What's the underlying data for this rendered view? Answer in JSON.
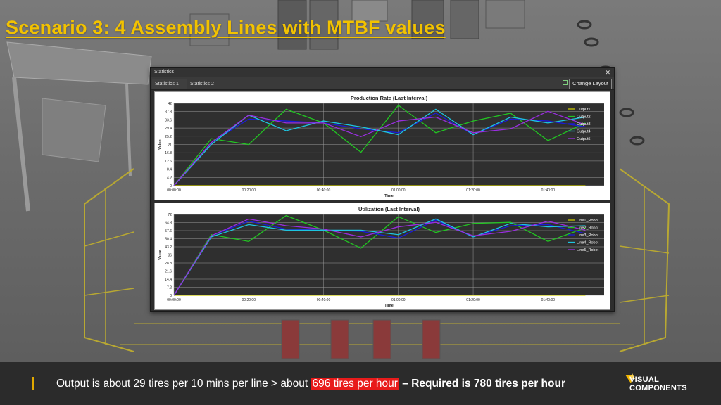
{
  "slide": {
    "title": "Scenario 3: 4 Assembly Lines with MTBF values"
  },
  "window": {
    "title": "Statistics",
    "close_icon": "close-icon",
    "tabs": [
      {
        "label": "Statistics 1",
        "active": true
      },
      {
        "label": "Statistics 2",
        "active": false
      }
    ],
    "change_layout_label": "Change Layout"
  },
  "caption": {
    "part1": "Output is about 29 tires per 10 mins per line > about ",
    "highlight": "696 tires per hour",
    "part2": " – Required is 780 tires per hour"
  },
  "logo": {
    "line1": "VISUAL",
    "line2": "COMPONENTS",
    "brand_color": "#f2b600"
  },
  "chart_data": [
    {
      "type": "line",
      "title": "Production Rate (Last Interval)",
      "xlabel": "Time",
      "ylabel": "Value",
      "x_ticks": [
        "00:00:00",
        "00:20:00",
        "00:40:00",
        "01:00:00",
        "01:20:00",
        "01:40:00"
      ],
      "y_ticks": [
        "0",
        "4.2",
        "8.4",
        "12.6",
        "16.8",
        "21",
        "25.2",
        "29.4",
        "33.6",
        "37.8",
        "42"
      ],
      "xlim": [
        0,
        115
      ],
      "ylim": [
        0,
        42
      ],
      "x": [
        0,
        10,
        20,
        30,
        40,
        50,
        60,
        70,
        80,
        90,
        100,
        110
      ],
      "legend_position": "top-right",
      "grid": true,
      "series": [
        {
          "name": "Output1",
          "color": "#c9c800",
          "values": [
            0,
            0,
            0,
            0,
            0,
            0,
            0,
            0,
            0,
            0,
            0,
            0
          ]
        },
        {
          "name": "Output2",
          "color": "#22c522",
          "values": [
            0,
            24,
            21,
            39,
            32,
            17,
            41,
            27,
            33,
            37,
            23,
            32
          ]
        },
        {
          "name": "Output3",
          "color": "#1b1bd8",
          "values": [
            0,
            22,
            34,
            33,
            32,
            29,
            27,
            37,
            26,
            34,
            33,
            30
          ]
        },
        {
          "name": "Output4",
          "color": "#1ec5e0",
          "values": [
            0,
            21,
            36,
            28,
            33,
            30,
            26,
            39,
            26,
            35,
            32,
            35
          ]
        },
        {
          "name": "Output5",
          "color": "#9a2ee0",
          "values": [
            0,
            22,
            36,
            32,
            32,
            25,
            33,
            35,
            27,
            29,
            38,
            31
          ]
        }
      ]
    },
    {
      "type": "line",
      "title": "Utilization (Last Interval)",
      "xlabel": "Time",
      "ylabel": "Value",
      "x_ticks": [
        "00:00:00",
        "00:20:00",
        "00:40:00",
        "01:00:00",
        "01:20:00",
        "01:40:00"
      ],
      "y_ticks": [
        "0",
        "7.2",
        "14.4",
        "21.6",
        "28.8",
        "36",
        "43.2",
        "50.4",
        "57.6",
        "64.8",
        "72"
      ],
      "xlim": [
        0,
        115
      ],
      "ylim": [
        0,
        72
      ],
      "x": [
        0,
        10,
        20,
        30,
        40,
        50,
        60,
        70,
        80,
        90,
        100,
        110
      ],
      "legend_position": "top-right",
      "grid": true,
      "series": [
        {
          "name": "Line1_Robot",
          "color": "#c9c800",
          "values": [
            0,
            0,
            0,
            0,
            0,
            0,
            0,
            0,
            0,
            0,
            0,
            0
          ]
        },
        {
          "name": "Line2_Robot",
          "color": "#22c522",
          "values": [
            0,
            54,
            48,
            71,
            58,
            42,
            70,
            56,
            64,
            65,
            48,
            60
          ]
        },
        {
          "name": "Line3_Robot",
          "color": "#1b1bd8",
          "values": [
            0,
            53,
            66,
            59,
            58,
            57,
            51,
            67,
            52,
            62,
            63,
            55
          ]
        },
        {
          "name": "Line4_Robot",
          "color": "#1ec5e0",
          "values": [
            0,
            52,
            63,
            58,
            58,
            58,
            54,
            68,
            52,
            64,
            61,
            62
          ]
        },
        {
          "name": "Line5_Robot",
          "color": "#9a2ee0",
          "values": [
            0,
            53,
            68,
            62,
            59,
            52,
            61,
            65,
            53,
            57,
            66,
            58
          ]
        }
      ]
    }
  ]
}
